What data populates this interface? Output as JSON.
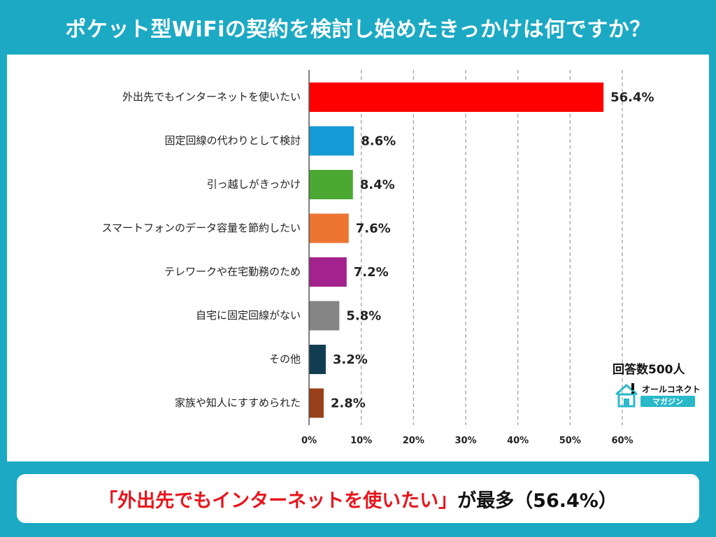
{
  "title": "ポケット型WiFiの契約を検討し始めたきっかけは何ですか？",
  "respondents": "回答数500人",
  "logo": {
    "top": "オールコネクト",
    "bottom": "マガジン",
    "icon": "house-icon"
  },
  "result": {
    "quote_open": "「",
    "highlight": "外出先でもインターネットを使いたい",
    "quote_close": "」",
    "suffix": "が最多（56.4%）"
  },
  "chart_data": {
    "type": "bar",
    "orientation": "horizontal",
    "categories": [
      "外出先でもインターネットを使いたい",
      "固定回線の代わりとして検討",
      "引っ越しがきっかけ",
      "スマートフォンのデータ容量を節約したい",
      "テレワークや在宅勤務のため",
      "自宅に固定回線がない",
      "その他",
      "家族や知人にすすめられた"
    ],
    "values": [
      56.4,
      8.6,
      8.4,
      7.6,
      7.2,
      5.8,
      3.2,
      2.8
    ],
    "value_labels": [
      "56.4%",
      "8.6%",
      "8.4%",
      "7.6%",
      "7.2%",
      "5.8%",
      "3.2%",
      "2.8%"
    ],
    "colors": [
      "#ff0000",
      "#159bd6",
      "#4aa833",
      "#ec7532",
      "#a3228d",
      "#858585",
      "#123c52",
      "#99401a"
    ],
    "xlim": [
      0,
      60
    ],
    "ticks": [
      0,
      10,
      20,
      30,
      40,
      50,
      60
    ],
    "tick_labels": [
      "0%",
      "10%",
      "20%",
      "30%",
      "40%",
      "50%",
      "60%"
    ],
    "grid": "vertical-dashed",
    "xlabel": "",
    "ylabel": ""
  }
}
